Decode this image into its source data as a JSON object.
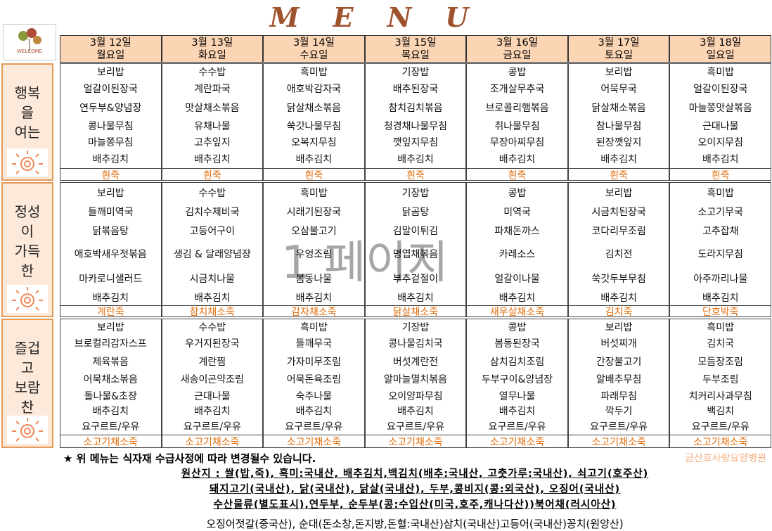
{
  "title": "MENU",
  "logo": "WELCOME",
  "days": [
    {
      "date": "3월 12일",
      "weekday": "월요일"
    },
    {
      "date": "3월 13일",
      "weekday": "화요일"
    },
    {
      "date": "3월 14일",
      "weekday": "수요일"
    },
    {
      "date": "3월 15일",
      "weekday": "목요일"
    },
    {
      "date": "3월 16일",
      "weekday": "금요일"
    },
    {
      "date": "3월 17일",
      "weekday": "토요일"
    },
    {
      "date": "3월 18일",
      "weekday": "일요일"
    }
  ],
  "meals": [
    {
      "label": [
        "행복",
        "을",
        "여는"
      ],
      "menus": [
        [
          "보리밥",
          "얼갈이된장국",
          "연두부&양념장",
          "콩나물무침",
          "마늘쫑무침",
          "배추김치",
          "흰죽"
        ],
        [
          "수수밥",
          "계란파국",
          "맛살채소볶음",
          "유채나물",
          "고추잎지",
          "배추김치",
          "흰죽"
        ],
        [
          "흑미밥",
          "애호박감자국",
          "닭살채소볶음",
          "쑥갓나물무침",
          "오복지무침",
          "배추김치",
          "흰죽"
        ],
        [
          "기장밥",
          "배추된장국",
          "참치김치볶음",
          "청경채나물무침",
          "깻잎지무침",
          "배추김치",
          "흰죽"
        ],
        [
          "콩밥",
          "조개살무추국",
          "브로콜리햄볶음",
          "취나물무침",
          "무장아찌무침",
          "배추김치",
          "흰죽"
        ],
        [
          "보리밥",
          "어묵무국",
          "닭살채소볶음",
          "참나물무침",
          "된장깻잎지",
          "배추김치",
          "흰죽"
        ],
        [
          "흑미밥",
          "얼갈이된장국",
          "마늘쫑맛살볶음",
          "근대나물",
          "오이지무침",
          "배추김치",
          "흰죽"
        ]
      ]
    },
    {
      "label": [
        "정성",
        "이",
        "가득",
        "한"
      ],
      "menus": [
        [
          "보리밥",
          "들깨미역국",
          "닭볶음탕",
          "애호박새우젓볶음",
          "마카로니샐러드",
          "배추김치",
          "계란죽"
        ],
        [
          "수수밥",
          "김치수제비국",
          "고등어구이",
          "생김 & 달래양념장",
          "시금치나물",
          "배추김치",
          "참치채소죽"
        ],
        [
          "흑미밥",
          "시래기된장국",
          "오삼불고기",
          "우엉조림",
          "봄동나물",
          "배추김치",
          "감자채소죽"
        ],
        [
          "기장밥",
          "닭곰탕",
          "김말이튀김",
          "명엽채볶음",
          "부추겉절이",
          "배추김치",
          "닭살채소죽"
        ],
        [
          "콩밥",
          "미역국",
          "파채돈까스",
          "카레소스",
          "얼갈이나물",
          "배추김치",
          "새우살채소죽"
        ],
        [
          "보리밥",
          "시금치된장국",
          "코다리무조림",
          "김치전",
          "쑥갓두부무침",
          "배추김치",
          "김치죽"
        ],
        [
          "흑미밥",
          "소고기무국",
          "고추잡채",
          "도라지무침",
          "아주까리나물",
          "배추김치",
          "단호박죽"
        ]
      ]
    },
    {
      "label": [
        "즐겁",
        "고",
        "보람",
        "찬"
      ],
      "menus": [
        [
          "보리밥",
          "브로컬리감자스프",
          "제육볶음",
          "어묵채소볶음",
          "돌나물&초장",
          "배추김치",
          "요구르트/우유",
          "소고기채소죽"
        ],
        [
          "수수밥",
          "우거지된장국",
          "계란찜",
          "새송이곤약조림",
          "근대나물",
          "배추김치",
          "요구르트/우유",
          "소고기채소죽"
        ],
        [
          "흑미밥",
          "들깨무국",
          "가자미무조림",
          "어묵돈육조림",
          "숙주나물",
          "배추김치",
          "요구르트/우유",
          "소고기채소죽"
        ],
        [
          "기장밥",
          "콩나물김치국",
          "버섯계란전",
          "알마늘멸치볶음",
          "오이양파무침",
          "배추김치",
          "요구르트/우유",
          "소고기채소죽"
        ],
        [
          "콩밥",
          "봄동된장국",
          "삼치김치조림",
          "두부구이&양념장",
          "열무나물",
          "배추김치",
          "요구르트/우유",
          "소고기채소죽"
        ],
        [
          "보리밥",
          "버섯찌개",
          "간장불고기",
          "알배추무침",
          "파래무침",
          "깍두기",
          "요구르트/우유",
          "소고기채소죽"
        ],
        [
          "흑미밥",
          "김치국",
          "모듬장조림",
          "두부조림",
          "치커리사과무침",
          "백김치",
          "요구르트/우유",
          "소고기채소죽"
        ]
      ]
    }
  ],
  "watermark": "1 페이지",
  "notice": "★ 위 메뉴는 식자재 수급사정에 따라 변경될수 있습니다.",
  "hospital": "금산효사랑요양병원",
  "origin": [
    "원산지 : 쌀(밥,죽), 흑미:국내산, 배추김치,백김치(배추:국내산, 고춧가루:국내산), 쇠고기(호주산)",
    "돼지고기(국내산), 닭(국내산), 닭살(국내산), 두부,콩비지(콩:외국산), 오징어(국내산)",
    "수산물류(별도표시),연두부, 순두부(콩:수입산(미국,호주,캐나다산))북어채(러시아산)",
    "오징어젓갈(중국산), 순대(돈소창,돈지방,돈혈:국내산)삼치(국내산)고등어(국내산)꽁치(원양산)"
  ]
}
